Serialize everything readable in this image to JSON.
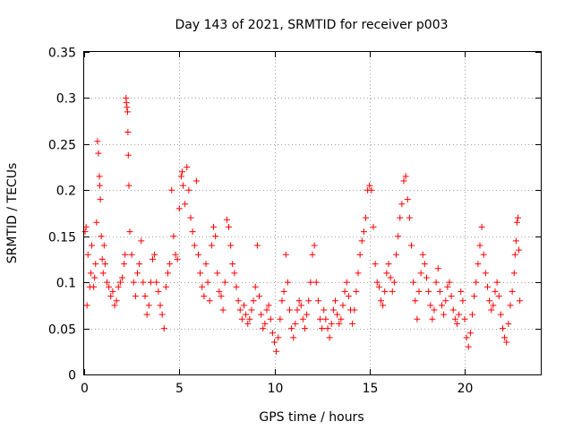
{
  "chart_data": {
    "type": "scatter",
    "title": "Day 143 of 2021, SRMTID for receiver p003",
    "xlabel": "GPS time / hours",
    "ylabel": "SRMTID / TECUs",
    "xlim": [
      0,
      24
    ],
    "ylim": [
      0,
      0.35
    ],
    "xticks": [
      0,
      5,
      10,
      15,
      20
    ],
    "xtick_labels": [
      "0",
      "5",
      "10",
      "15",
      "20"
    ],
    "yticks": [
      0,
      0.05,
      0.1,
      0.15,
      0.2,
      0.25,
      0.3,
      0.35
    ],
    "ytick_labels": [
      "0",
      "0.05",
      "0.1",
      "0.15",
      "0.2",
      "0.25",
      "0.3",
      "0.35"
    ],
    "grid": true,
    "marker": "+",
    "color": "#ff0000",
    "series": [
      {
        "name": "SRMTID",
        "points": [
          [
            0.05,
            0.155
          ],
          [
            0.1,
            0.16
          ],
          [
            0.15,
            0.075
          ],
          [
            0.2,
            0.13
          ],
          [
            0.3,
            0.095
          ],
          [
            0.35,
            0.11
          ],
          [
            0.4,
            0.14
          ],
          [
            0.5,
            0.095
          ],
          [
            0.55,
            0.105
          ],
          [
            0.6,
            0.12
          ],
          [
            0.65,
            0.165
          ],
          [
            0.7,
            0.253
          ],
          [
            0.75,
            0.24
          ],
          [
            0.8,
            0.215
          ],
          [
            0.82,
            0.205
          ],
          [
            0.85,
            0.19
          ],
          [
            0.9,
            0.15
          ],
          [
            0.95,
            0.125
          ],
          [
            1.0,
            0.11
          ],
          [
            1.05,
            0.14
          ],
          [
            1.1,
            0.12
          ],
          [
            1.2,
            0.1
          ],
          [
            1.3,
            0.095
          ],
          [
            1.4,
            0.085
          ],
          [
            1.5,
            0.09
          ],
          [
            1.6,
            0.075
          ],
          [
            1.7,
            0.08
          ],
          [
            1.8,
            0.095
          ],
          [
            1.9,
            0.1
          ],
          [
            2.0,
            0.105
          ],
          [
            2.1,
            0.12
          ],
          [
            2.15,
            0.13
          ],
          [
            2.2,
            0.3
          ],
          [
            2.22,
            0.295
          ],
          [
            2.25,
            0.29
          ],
          [
            2.28,
            0.285
          ],
          [
            2.3,
            0.263
          ],
          [
            2.32,
            0.238
          ],
          [
            2.35,
            0.205
          ],
          [
            2.4,
            0.155
          ],
          [
            2.5,
            0.13
          ],
          [
            2.6,
            0.1
          ],
          [
            2.7,
            0.085
          ],
          [
            2.8,
            0.11
          ],
          [
            2.9,
            0.12
          ],
          [
            3.0,
            0.145
          ],
          [
            3.1,
            0.1
          ],
          [
            3.2,
            0.085
          ],
          [
            3.3,
            0.065
          ],
          [
            3.4,
            0.075
          ],
          [
            3.5,
            0.1
          ],
          [
            3.6,
            0.125
          ],
          [
            3.7,
            0.13
          ],
          [
            3.8,
            0.1
          ],
          [
            3.9,
            0.09
          ],
          [
            4.0,
            0.075
          ],
          [
            4.1,
            0.065
          ],
          [
            4.2,
            0.05
          ],
          [
            4.3,
            0.095
          ],
          [
            4.4,
            0.11
          ],
          [
            4.5,
            0.12
          ],
          [
            4.6,
            0.2
          ],
          [
            4.7,
            0.15
          ],
          [
            4.8,
            0.13
          ],
          [
            4.9,
            0.125
          ],
          [
            5.0,
            0.18
          ],
          [
            5.1,
            0.215
          ],
          [
            5.15,
            0.22
          ],
          [
            5.2,
            0.205
          ],
          [
            5.3,
            0.185
          ],
          [
            5.4,
            0.225
          ],
          [
            5.5,
            0.2
          ],
          [
            5.6,
            0.17
          ],
          [
            5.7,
            0.155
          ],
          [
            5.8,
            0.14
          ],
          [
            5.9,
            0.21
          ],
          [
            6.0,
            0.13
          ],
          [
            6.1,
            0.11
          ],
          [
            6.2,
            0.095
          ],
          [
            6.3,
            0.085
          ],
          [
            6.4,
            0.12
          ],
          [
            6.5,
            0.1
          ],
          [
            6.6,
            0.08
          ],
          [
            6.7,
            0.14
          ],
          [
            6.8,
            0.16
          ],
          [
            6.9,
            0.15
          ],
          [
            7.0,
            0.11
          ],
          [
            7.1,
            0.09
          ],
          [
            7.2,
            0.085
          ],
          [
            7.3,
            0.07
          ],
          [
            7.4,
            0.1
          ],
          [
            7.5,
            0.168
          ],
          [
            7.6,
            0.16
          ],
          [
            7.7,
            0.14
          ],
          [
            7.8,
            0.12
          ],
          [
            7.9,
            0.11
          ],
          [
            8.0,
            0.095
          ],
          [
            8.1,
            0.08
          ],
          [
            8.2,
            0.07
          ],
          [
            8.3,
            0.06
          ],
          [
            8.4,
            0.075
          ],
          [
            8.5,
            0.065
          ],
          [
            8.6,
            0.055
          ],
          [
            8.7,
            0.06
          ],
          [
            8.8,
            0.07
          ],
          [
            8.9,
            0.08
          ],
          [
            9.0,
            0.095
          ],
          [
            9.1,
            0.14
          ],
          [
            9.2,
            0.085
          ],
          [
            9.3,
            0.065
          ],
          [
            9.4,
            0.05
          ],
          [
            9.5,
            0.055
          ],
          [
            9.6,
            0.07
          ],
          [
            9.7,
            0.075
          ],
          [
            9.8,
            0.06
          ],
          [
            9.9,
            0.045
          ],
          [
            10.0,
            0.035
          ],
          [
            10.1,
            0.025
          ],
          [
            10.2,
            0.04
          ],
          [
            10.3,
            0.06
          ],
          [
            10.4,
            0.08
          ],
          [
            10.5,
            0.09
          ],
          [
            10.6,
            0.13
          ],
          [
            10.7,
            0.1
          ],
          [
            10.8,
            0.07
          ],
          [
            10.9,
            0.05
          ],
          [
            11.0,
            0.04
          ],
          [
            11.1,
            0.055
          ],
          [
            11.2,
            0.07
          ],
          [
            11.3,
            0.08
          ],
          [
            11.4,
            0.075
          ],
          [
            11.5,
            0.06
          ],
          [
            11.6,
            0.05
          ],
          [
            11.7,
            0.065
          ],
          [
            11.8,
            0.08
          ],
          [
            11.9,
            0.1
          ],
          [
            12.0,
            0.13
          ],
          [
            12.1,
            0.14
          ],
          [
            12.2,
            0.1
          ],
          [
            12.3,
            0.08
          ],
          [
            12.4,
            0.06
          ],
          [
            12.5,
            0.05
          ],
          [
            12.6,
            0.07
          ],
          [
            12.7,
            0.06
          ],
          [
            12.8,
            0.05
          ],
          [
            12.9,
            0.04
          ],
          [
            13.0,
            0.055
          ],
          [
            13.1,
            0.07
          ],
          [
            13.2,
            0.08
          ],
          [
            13.3,
            0.065
          ],
          [
            13.4,
            0.055
          ],
          [
            13.5,
            0.06
          ],
          [
            13.6,
            0.075
          ],
          [
            13.7,
            0.09
          ],
          [
            13.8,
            0.1
          ],
          [
            13.9,
            0.085
          ],
          [
            14.0,
            0.07
          ],
          [
            14.1,
            0.055
          ],
          [
            14.2,
            0.07
          ],
          [
            14.3,
            0.09
          ],
          [
            14.4,
            0.11
          ],
          [
            14.5,
            0.13
          ],
          [
            14.6,
            0.145
          ],
          [
            14.7,
            0.155
          ],
          [
            14.8,
            0.17
          ],
          [
            14.9,
            0.2
          ],
          [
            15.0,
            0.205
          ],
          [
            15.1,
            0.2
          ],
          [
            15.2,
            0.16
          ],
          [
            15.3,
            0.12
          ],
          [
            15.4,
            0.1
          ],
          [
            15.5,
            0.095
          ],
          [
            15.6,
            0.08
          ],
          [
            15.7,
            0.075
          ],
          [
            15.8,
            0.09
          ],
          [
            15.9,
            0.11
          ],
          [
            16.0,
            0.12
          ],
          [
            16.1,
            0.105
          ],
          [
            16.2,
            0.09
          ],
          [
            16.3,
            0.1
          ],
          [
            16.4,
            0.13
          ],
          [
            16.5,
            0.15
          ],
          [
            16.6,
            0.17
          ],
          [
            16.7,
            0.185
          ],
          [
            16.8,
            0.21
          ],
          [
            16.9,
            0.215
          ],
          [
            17.0,
            0.19
          ],
          [
            17.1,
            0.17
          ],
          [
            17.2,
            0.14
          ],
          [
            17.3,
            0.1
          ],
          [
            17.4,
            0.08
          ],
          [
            17.5,
            0.06
          ],
          [
            17.6,
            0.09
          ],
          [
            17.7,
            0.11
          ],
          [
            17.8,
            0.13
          ],
          [
            17.9,
            0.12
          ],
          [
            18.0,
            0.105
          ],
          [
            18.1,
            0.09
          ],
          [
            18.2,
            0.075
          ],
          [
            18.3,
            0.06
          ],
          [
            18.4,
            0.07
          ],
          [
            18.5,
            0.1
          ],
          [
            18.6,
            0.115
          ],
          [
            18.7,
            0.09
          ],
          [
            18.8,
            0.075
          ],
          [
            18.9,
            0.065
          ],
          [
            19.0,
            0.08
          ],
          [
            19.1,
            0.095
          ],
          [
            19.2,
            0.1
          ],
          [
            19.3,
            0.085
          ],
          [
            19.4,
            0.07
          ],
          [
            19.5,
            0.06
          ],
          [
            19.6,
            0.055
          ],
          [
            19.7,
            0.065
          ],
          [
            19.8,
            0.09
          ],
          [
            19.9,
            0.08
          ],
          [
            20.0,
            0.06
          ],
          [
            20.1,
            0.04
          ],
          [
            20.2,
            0.03
          ],
          [
            20.3,
            0.045
          ],
          [
            20.4,
            0.065
          ],
          [
            20.5,
            0.085
          ],
          [
            20.6,
            0.1
          ],
          [
            20.7,
            0.12
          ],
          [
            20.8,
            0.14
          ],
          [
            20.9,
            0.16
          ],
          [
            21.0,
            0.13
          ],
          [
            21.1,
            0.11
          ],
          [
            21.2,
            0.095
          ],
          [
            21.3,
            0.08
          ],
          [
            21.4,
            0.07
          ],
          [
            21.5,
            0.075
          ],
          [
            21.6,
            0.09
          ],
          [
            21.7,
            0.1
          ],
          [
            21.8,
            0.085
          ],
          [
            21.9,
            0.065
          ],
          [
            22.0,
            0.05
          ],
          [
            22.1,
            0.04
          ],
          [
            22.2,
            0.035
          ],
          [
            22.3,
            0.055
          ],
          [
            22.4,
            0.075
          ],
          [
            22.5,
            0.09
          ],
          [
            22.6,
            0.11
          ],
          [
            22.65,
            0.13
          ],
          [
            22.7,
            0.145
          ],
          [
            22.75,
            0.165
          ],
          [
            22.8,
            0.17
          ],
          [
            22.85,
            0.135
          ],
          [
            22.9,
            0.08
          ]
        ]
      }
    ]
  }
}
